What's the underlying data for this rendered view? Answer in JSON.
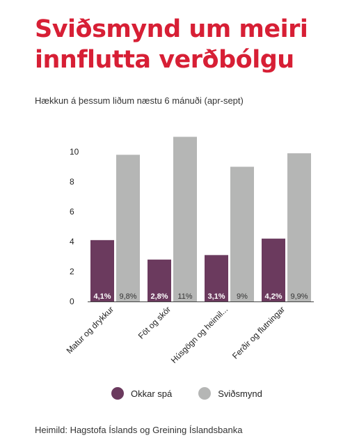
{
  "title": "Sviðsmynd um meiri innflutta verðbólgu",
  "subtitle": "Hækkun á þessum liðum næstu 6 mánuði (apr-sept)",
  "source": "Heimild: Hagstofa Íslands og Greining Íslandsbanka",
  "colors": {
    "spa": "#6b3a5e",
    "svidsmynd": "#b5b6b5"
  },
  "chart_data": {
    "type": "bar",
    "categories": [
      "Matur og drykkur",
      "Föt og skór",
      "Húsgögn og heimil...",
      "Ferðir og flutningar"
    ],
    "series": [
      {
        "name": "Okkar spá",
        "values": [
          4.1,
          2.8,
          3.1,
          4.2
        ],
        "labels": [
          "4,1%",
          "2,8%",
          "3,1%",
          "4,2%"
        ]
      },
      {
        "name": "Sviðsmynd",
        "values": [
          9.8,
          11,
          9,
          9.9
        ],
        "labels": [
          "9,8%",
          "11%",
          "9%",
          "9,9%"
        ]
      }
    ],
    "yticks": [
      0,
      2,
      4,
      6,
      8,
      10
    ],
    "ylim": [
      0,
      11
    ],
    "legend": "bottom",
    "grid": false
  }
}
